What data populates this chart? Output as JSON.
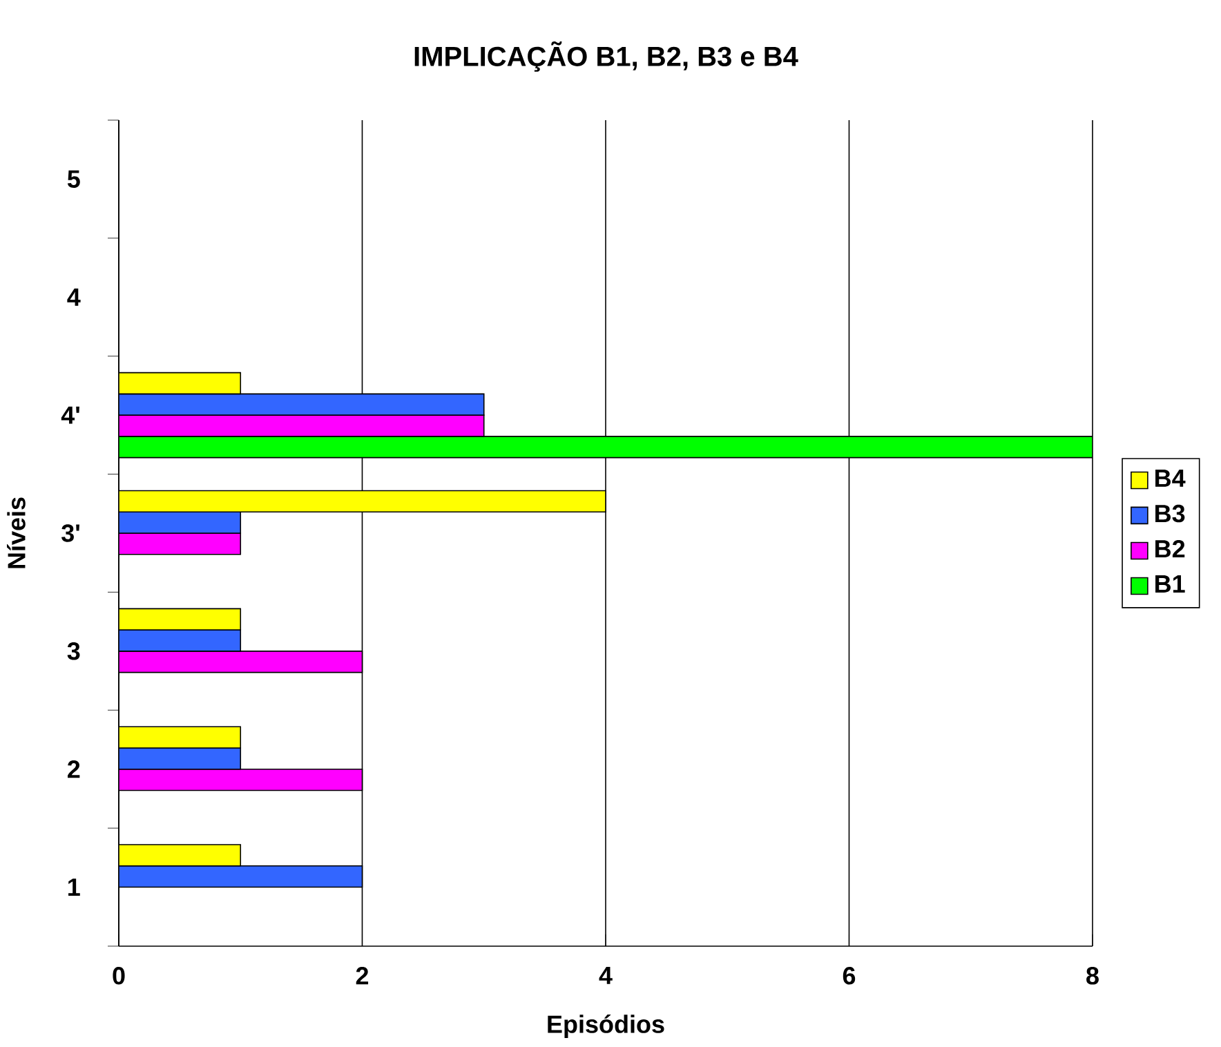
{
  "chart_data": {
    "type": "bar",
    "orientation": "horizontal",
    "title": "IMPLICAÇÃO B1, B2, B3 e B4",
    "xlabel": "Episódios",
    "ylabel": "Níveis",
    "categories": [
      "5",
      "4",
      "4'",
      "3'",
      "3",
      "2",
      "1"
    ],
    "series": [
      {
        "name": "B1",
        "color": "#00ff00",
        "values": [
          null,
          null,
          8,
          null,
          null,
          null,
          null
        ]
      },
      {
        "name": "B2",
        "color": "#ff00ff",
        "values": [
          null,
          null,
          3,
          1,
          2,
          2,
          null
        ]
      },
      {
        "name": "B3",
        "color": "#3366ff",
        "values": [
          null,
          null,
          3,
          1,
          1,
          1,
          2
        ]
      },
      {
        "name": "B4",
        "color": "#ffff00",
        "values": [
          null,
          null,
          1,
          4,
          1,
          1,
          1
        ]
      }
    ],
    "xlim": [
      0,
      8
    ],
    "xticks": [
      0,
      2,
      4,
      6,
      8
    ],
    "grid": "x",
    "legend": "right"
  }
}
